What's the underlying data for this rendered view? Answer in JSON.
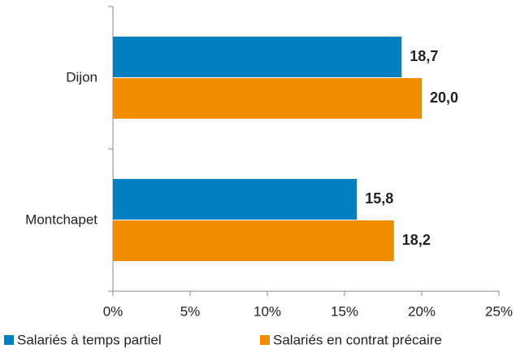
{
  "chart_data": {
    "type": "hbar",
    "categories": [
      "Dijon",
      "Montchapet"
    ],
    "series": [
      {
        "name": "Salariés à temps partiel",
        "color": "#0080c1",
        "values": [
          18.7,
          15.8
        ],
        "value_labels": [
          "18,7",
          "15,8"
        ]
      },
      {
        "name": "Salariés en contrat précaire",
        "color": "#f28c00",
        "values": [
          20.0,
          18.2
        ],
        "value_labels": [
          "20,0",
          "18,2"
        ]
      }
    ],
    "xlim": [
      0,
      25
    ],
    "xticks": [
      {
        "value": 0,
        "label": "0%"
      },
      {
        "value": 5,
        "label": "5%"
      },
      {
        "value": 10,
        "label": "10%"
      },
      {
        "value": 15,
        "label": "15%"
      },
      {
        "value": 20,
        "label": "20%"
      },
      {
        "value": 25,
        "label": "25%"
      }
    ],
    "legend": "bottom"
  }
}
